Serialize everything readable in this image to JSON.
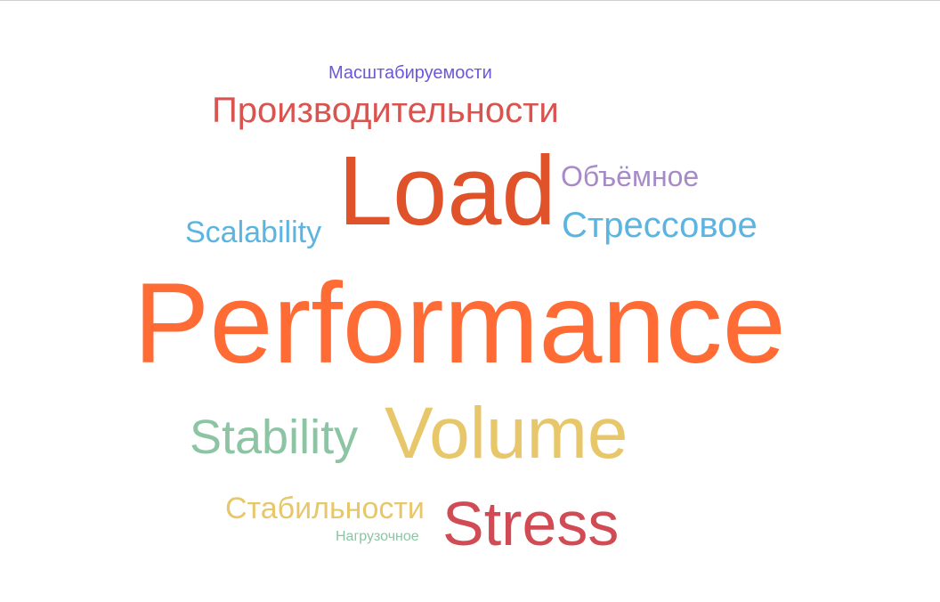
{
  "colors": {
    "masht": "#6e56d9",
    "proizv": "#d9534f",
    "load": "#e0522a",
    "obyom": "#a78bc8",
    "scal": "#5bb5e0",
    "stress2": "#5bb5e0",
    "perf": "#ff6b35",
    "stab": "#8cc4a4",
    "volume": "#e8c76a",
    "stabrus": "#e8c76a",
    "stress": "#d14b55",
    "nagr": "#8cc4a4"
  },
  "words": {
    "masht": "Масштабируемости",
    "proizv": "Производительности",
    "load": "Load",
    "obyom": "Объёмное",
    "scal": "Scalability",
    "stress2": "Стрессовое",
    "perf": "Performance",
    "stab": "Stability",
    "volume": "Volume",
    "stabrus": "Стабильности",
    "stress": "Stress",
    "nagr": "Нагрузочное"
  }
}
